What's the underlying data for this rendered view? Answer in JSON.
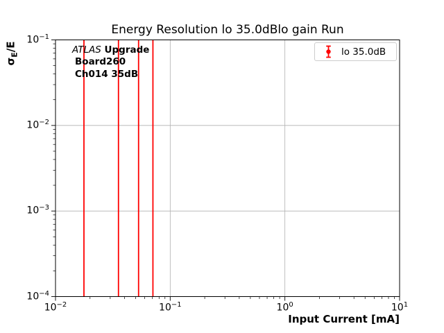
{
  "chart_data": {
    "type": "errorbar",
    "title": "Energy Resolution lo 35.0dBlo gain Run",
    "xlabel": "Input Current [mA]",
    "ylabel": "σE/E",
    "ylabel_parts": {
      "base": "σ",
      "sub": "E",
      "rest": "/E"
    },
    "xscale": "log",
    "yscale": "log",
    "xlim": [
      0.01,
      10
    ],
    "ylim": [
      0.0001,
      0.1
    ],
    "x_major_ticks": [
      0.01,
      0.1,
      1,
      10
    ],
    "y_major_ticks": [
      0.1,
      0.01,
      0.001,
      0.0001
    ],
    "grid": true,
    "series": [
      {
        "name": "lo 35.0dB",
        "color": "#ff0000",
        "x": [
          0.0177,
          0.0354,
          0.053,
          0.0707
        ],
        "error_bars_span_full_y_range": true
      }
    ],
    "legend": {
      "position": "upper right",
      "entries": [
        {
          "label": "lo 35.0dB",
          "color": "#ff0000",
          "marker": "errorbar-point"
        }
      ]
    },
    "annotation": {
      "line1_italic": "ATLAS",
      "line1_bold": " Upgrade",
      "line2": "Board260",
      "line3": "Ch014 35dB"
    },
    "colors": {
      "line": "#ff0000",
      "grid": "#b0b0b0",
      "spine": "#000000",
      "legend_border": "#cccccc",
      "text": "#000000"
    }
  }
}
